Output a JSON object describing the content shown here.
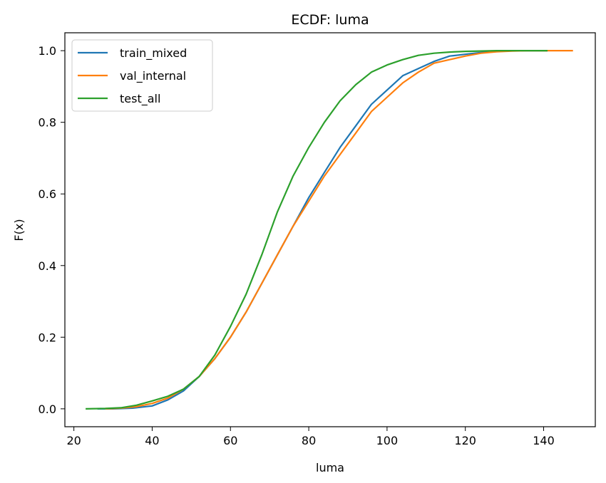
{
  "chart_data": {
    "type": "line",
    "title": "ECDF: luma",
    "xlabel": "luma",
    "ylabel": "F(x)",
    "xlim": [
      17.7,
      153.2
    ],
    "ylim": [
      -0.05,
      1.05
    ],
    "x_ticks": [
      20,
      40,
      60,
      80,
      100,
      120,
      140
    ],
    "y_ticks": [
      0.0,
      0.2,
      0.4,
      0.6,
      0.8,
      1.0
    ],
    "x_tick_labels": [
      "20",
      "40",
      "60",
      "80",
      "100",
      "120",
      "140"
    ],
    "y_tick_labels": [
      "0.0",
      "0.2",
      "0.4",
      "0.6",
      "0.8",
      "1.0"
    ],
    "grid": false,
    "legend_position": "top-left",
    "series": [
      {
        "name": "train_mixed",
        "color": "#1f77b4",
        "x": [
          26,
          30,
          35,
          40,
          44,
          48,
          52,
          56,
          60,
          64,
          68,
          72,
          76,
          80,
          84,
          88,
          92,
          96,
          100,
          104,
          108,
          112,
          116,
          120,
          124,
          128,
          132,
          136,
          141
        ],
        "y": [
          0.0,
          0.0,
          0.002,
          0.008,
          0.025,
          0.05,
          0.09,
          0.14,
          0.2,
          0.27,
          0.35,
          0.43,
          0.51,
          0.59,
          0.66,
          0.73,
          0.79,
          0.85,
          0.89,
          0.93,
          0.95,
          0.97,
          0.985,
          0.99,
          0.995,
          0.998,
          1.0,
          1.0,
          1.0
        ]
      },
      {
        "name": "val_internal",
        "color": "#ff7f0e",
        "x": [
          28,
          32,
          36,
          40,
          44,
          48,
          52,
          56,
          60,
          64,
          68,
          72,
          76,
          80,
          84,
          88,
          92,
          96,
          100,
          104,
          108,
          112,
          116,
          120,
          124,
          128,
          132,
          136,
          140,
          144,
          147.5
        ],
        "y": [
          0.0,
          0.002,
          0.006,
          0.015,
          0.03,
          0.055,
          0.09,
          0.14,
          0.2,
          0.27,
          0.35,
          0.43,
          0.51,
          0.58,
          0.65,
          0.71,
          0.77,
          0.83,
          0.87,
          0.91,
          0.94,
          0.965,
          0.975,
          0.985,
          0.993,
          0.997,
          0.999,
          1.0,
          1.0,
          1.0,
          1.0
        ]
      },
      {
        "name": "test_all",
        "color": "#2ca02c",
        "x": [
          23,
          28,
          32,
          36,
          40,
          44,
          48,
          52,
          56,
          60,
          64,
          68,
          72,
          76,
          80,
          84,
          88,
          92,
          96,
          100,
          104,
          108,
          112,
          116,
          120,
          124,
          128,
          132,
          136,
          141
        ],
        "y": [
          0.0,
          0.001,
          0.003,
          0.01,
          0.022,
          0.035,
          0.055,
          0.09,
          0.15,
          0.23,
          0.32,
          0.43,
          0.55,
          0.65,
          0.73,
          0.8,
          0.86,
          0.905,
          0.94,
          0.96,
          0.975,
          0.987,
          0.993,
          0.996,
          0.998,
          0.999,
          1.0,
          1.0,
          1.0,
          1.0
        ]
      }
    ]
  }
}
